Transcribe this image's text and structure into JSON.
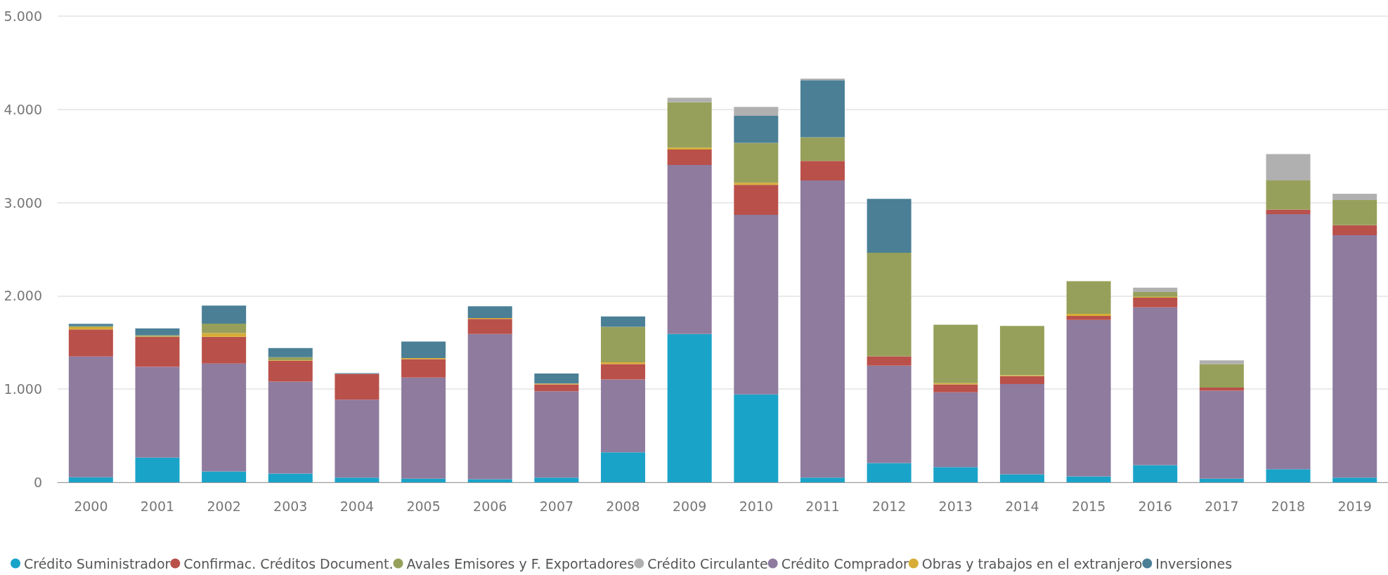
{
  "chart_data": {
    "type": "bar",
    "stacked": true,
    "categories": [
      "2000",
      "2001",
      "2002",
      "2003",
      "2004",
      "2005",
      "2006",
      "2007",
      "2008",
      "2009",
      "2010",
      "2011",
      "2012",
      "2013",
      "2014",
      "2015",
      "2016",
      "2017",
      "2018",
      "2019"
    ],
    "series": [
      {
        "name": "Crédito Suministrador",
        "color": "#1aa3c8",
        "values": [
          55,
          265,
          117,
          94,
          50,
          40,
          34,
          50,
          322,
          1591,
          943,
          50,
          208,
          164,
          87,
          64,
          185,
          40,
          141,
          50
        ]
      },
      {
        "name": "Crédito Comprador",
        "color": "#8e7b9e",
        "values": [
          1295,
          973,
          1158,
          987,
          836,
          1084,
          1557,
          927,
          782,
          1812,
          1926,
          3188,
          1044,
          802,
          967,
          1678,
          1691,
          943,
          2735,
          2601
        ]
      },
      {
        "name": "Confirmac. Créditos Document.",
        "color": "#b9504a",
        "values": [
          290,
          322,
          285,
          224,
          278,
          198,
          161,
          73,
          164,
          167,
          322,
          208,
          100,
          84,
          84,
          43,
          104,
          34,
          50,
          107
        ]
      },
      {
        "name": "Obras y trabajos en el extranjero",
        "color": "#d7ad35",
        "values": [
          25,
          5,
          41,
          5,
          0,
          10,
          10,
          10,
          20,
          20,
          23,
          0,
          0,
          13,
          10,
          23,
          10,
          0,
          0,
          0
        ]
      },
      {
        "name": "Avales Emisores y F. Exportadores",
        "color": "#97a05a",
        "values": [
          10,
          12,
          100,
          32,
          0,
          0,
          0,
          0,
          380,
          487,
          427,
          255,
          1111,
          628,
          530,
          350,
          50,
          251,
          312,
          269
        ]
      },
      {
        "name": "Inversiones",
        "color": "#4a7f96",
        "values": [
          25,
          74,
          195,
          98,
          7,
          178,
          127,
          108,
          111,
          0,
          289,
          611,
          577,
          0,
          0,
          0,
          0,
          0,
          0,
          0
        ]
      },
      {
        "name": "Crédito Circulante",
        "color": "#b0b0b0",
        "values": [
          0,
          0,
          0,
          0,
          0,
          0,
          0,
          0,
          0,
          47,
          97,
          17,
          0,
          0,
          0,
          0,
          47,
          41,
          282,
          67
        ]
      }
    ],
    "ylim": [
      0,
      5000
    ],
    "yticks": [
      0,
      {
        "value": 1000,
        "label": "1.000"
      },
      {
        "value": 2000,
        "label": "2.000"
      },
      {
        "value": 3000,
        "label": "3.000"
      },
      {
        "value": 4000,
        "label": "4.000"
      },
      {
        "value": 5000,
        "label": "5.000"
      }
    ],
    "grid": "y",
    "legend": "bottom"
  }
}
